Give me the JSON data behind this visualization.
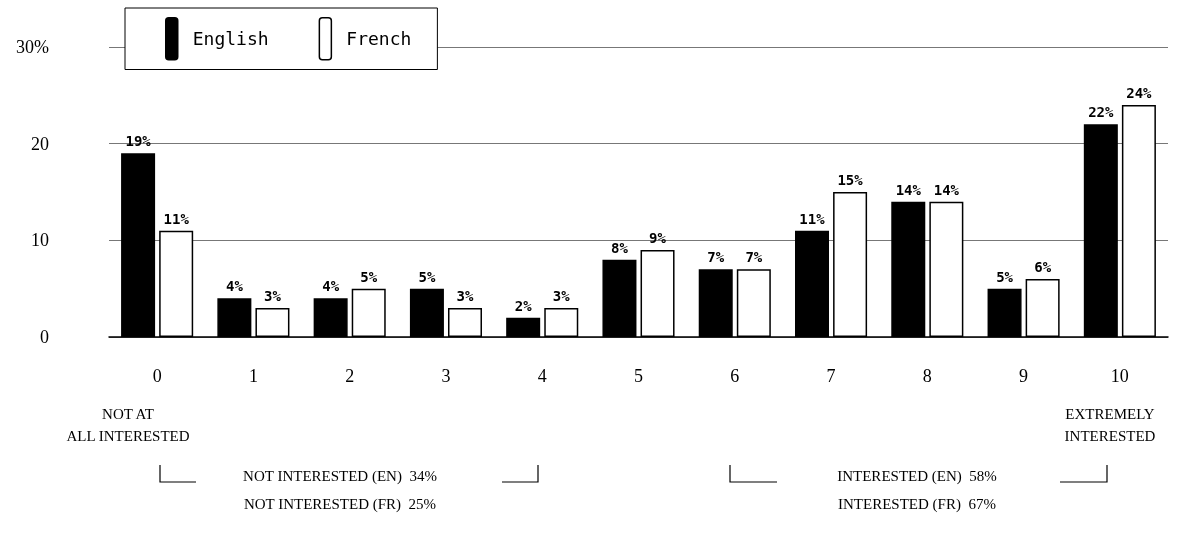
{
  "chart_data": {
    "type": "bar",
    "categories": [
      "0",
      "1",
      "2",
      "3",
      "4",
      "5",
      "6",
      "7",
      "8",
      "9",
      "10"
    ],
    "series": [
      {
        "name": "English",
        "color": "#000000",
        "values": [
          19,
          4,
          4,
          5,
          2,
          8,
          7,
          11,
          14,
          5,
          22
        ],
        "value_labels": [
          "19%",
          "4%",
          "4%",
          "5%",
          "2%",
          "8%",
          "7%",
          "11%",
          "14%",
          "5%",
          "22%"
        ]
      },
      {
        "name": "French",
        "color": "#ffffff",
        "values": [
          11,
          3,
          5,
          3,
          3,
          9,
          7,
          15,
          14,
          6,
          24
        ],
        "value_labels": [
          "11%",
          "3%",
          "5%",
          "3%",
          "3%",
          "9%",
          "7%",
          "15%",
          "14%",
          "6%",
          "24%"
        ]
      }
    ],
    "ylim": [
      0,
      30
    ],
    "yticks": [
      0,
      10,
      20,
      {
        "value": 30,
        "label": "30%"
      }
    ],
    "grid": "y",
    "legend": "top left",
    "annotations": [
      "NOT AT ALL INTERESTED",
      "EXTREMELY INTERESTED",
      "NOT INTERESTED (EN)  34%",
      "NOT INTERESTED (FR)  25%",
      "INTERESTED (EN)  58%",
      "INTERESTED (FR)  67%"
    ]
  }
}
